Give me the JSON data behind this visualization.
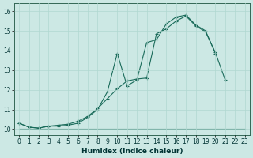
{
  "xlabel": "Humidex (Indice chaleur)",
  "xlim": [
    -0.5,
    23.5
  ],
  "ylim": [
    9.7,
    16.4
  ],
  "yticks": [
    10,
    11,
    12,
    13,
    14,
    15,
    16
  ],
  "xticks": [
    0,
    1,
    2,
    3,
    4,
    5,
    6,
    7,
    8,
    9,
    10,
    11,
    12,
    13,
    14,
    15,
    16,
    17,
    18,
    19,
    20,
    21,
    22,
    23
  ],
  "bg_color": "#cce8e4",
  "line_color": "#1a6b5a",
  "line1_x": [
    0,
    1,
    2,
    3,
    4,
    5,
    6,
    7,
    8,
    9,
    10,
    11,
    12,
    13,
    14,
    15,
    16,
    17,
    18,
    19,
    20,
    21
  ],
  "line1_y": [
    10.3,
    10.1,
    10.05,
    10.15,
    10.2,
    10.25,
    10.4,
    10.65,
    11.05,
    11.55,
    12.05,
    12.45,
    12.55,
    12.6,
    14.85,
    15.1,
    15.5,
    15.75,
    15.25,
    14.95,
    13.9,
    12.5
  ],
  "line2_x": [
    0,
    1,
    2,
    3,
    4,
    5,
    6,
    7,
    8,
    9,
    10,
    11,
    12,
    13,
    14,
    15,
    16,
    17,
    18,
    19,
    20,
    21,
    22,
    23
  ],
  "line2_y": [
    10.3,
    10.1,
    10.05,
    10.15,
    10.15,
    10.2,
    10.3,
    10.6,
    11.0,
    11.9,
    13.85,
    12.2,
    12.5,
    14.4,
    14.55,
    15.35,
    15.7,
    15.8,
    15.3,
    15.0,
    13.85,
    null,
    null,
    null
  ],
  "line3_x": [
    0,
    18,
    23
  ],
  "line3_y": [
    10.0,
    10.0,
    10.0
  ]
}
